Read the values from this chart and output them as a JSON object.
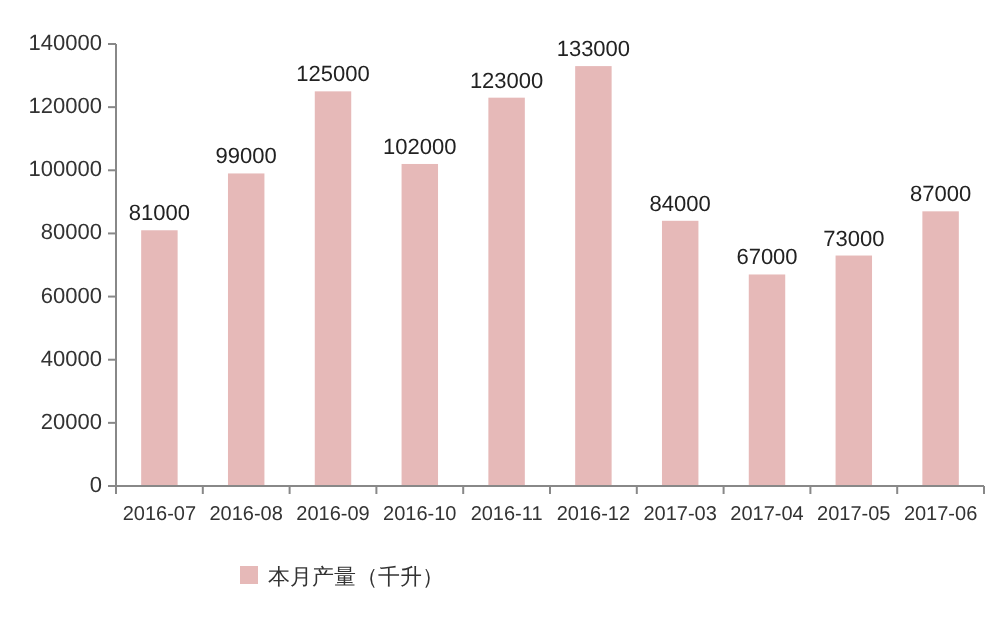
{
  "chart_data": {
    "type": "bar",
    "categories": [
      "2016-07",
      "2016-08",
      "2016-09",
      "2016-10",
      "2016-11",
      "2016-12",
      "2017-03",
      "2017-04",
      "2017-05",
      "2017-06"
    ],
    "series": [
      {
        "name": "本月产量（千升）",
        "color": "#e6b9b8",
        "values": [
          81000,
          99000,
          125000,
          102000,
          123000,
          133000,
          84000,
          67000,
          73000,
          87000
        ]
      }
    ],
    "ylim": [
      0,
      140000
    ],
    "yticks": [
      0,
      20000,
      40000,
      60000,
      80000,
      100000,
      120000,
      140000
    ],
    "data_labels": true,
    "legend": "bottom left",
    "grid": false
  }
}
